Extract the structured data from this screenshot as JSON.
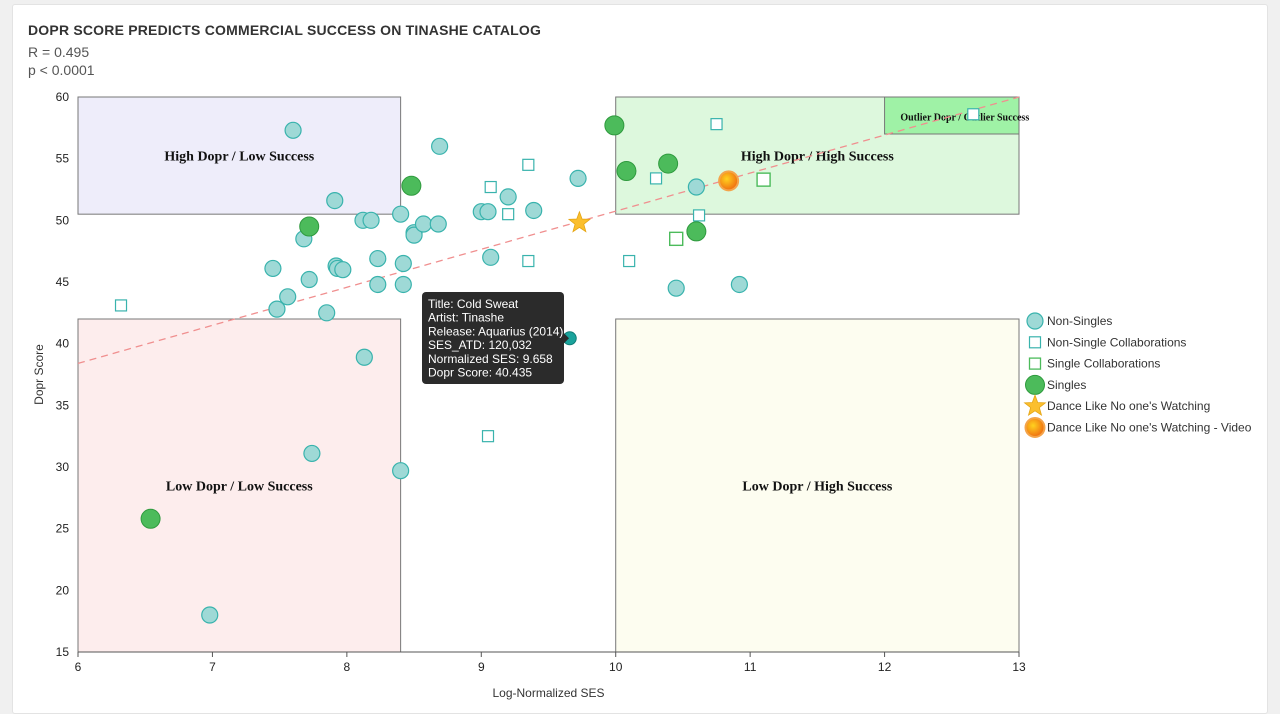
{
  "header": {
    "title": "DOPR SCORE PREDICTS COMMERCIAL SUCCESS ON TINASHE CATALOG",
    "r_value": "R = 0.495",
    "p_value": "p < 0.0001"
  },
  "colors": {
    "teal_fill": "#9ed9d6",
    "teal_stroke": "#39b3ad",
    "green_fill": "#4cbb5b",
    "green_stroke": "#2f9a3e",
    "star": "#fbbf2d",
    "video": "#f27c12",
    "trend": "#f08f8f",
    "region_high_low": "#eeedfa",
    "region_high_high": "#ddf8dd",
    "region_outlier": "#9ff2a6",
    "region_low_low": "#fdeded",
    "region_low_high": "#fdfdf0",
    "tooltip_bg": "#2b2b2b"
  },
  "chart_data": {
    "type": "scatter",
    "xlabel": "Log-Normalized SES",
    "ylabel": "Dopr Score",
    "xlim": [
      6,
      13
    ],
    "ylim": [
      15,
      60
    ],
    "x_ticks": [
      "6",
      "7",
      "8",
      "9",
      "10",
      "11",
      "12",
      "13"
    ],
    "y_ticks": [
      "15",
      "20",
      "25",
      "30",
      "35",
      "40",
      "45",
      "50",
      "55",
      "60"
    ],
    "grid": false,
    "legend_position": "right",
    "regions": [
      {
        "label": "High Dopr / Low Success",
        "x": [
          6,
          8.4
        ],
        "y": [
          50.5,
          60
        ],
        "color_key": "region_high_low"
      },
      {
        "label": "High Dopr / High Success",
        "x": [
          10,
          13
        ],
        "y": [
          50.5,
          60
        ],
        "color_key": "region_high_high"
      },
      {
        "label": "Outlier Dopr / Outlier Success",
        "x": [
          12,
          13
        ],
        "y": [
          57,
          60
        ],
        "color_key": "region_outlier"
      },
      {
        "label": "Low Dopr / Low Success",
        "x": [
          6,
          8.4
        ],
        "y": [
          15,
          42
        ],
        "color_key": "region_low_low"
      },
      {
        "label": "Low Dopr / High Success",
        "x": [
          10,
          13
        ],
        "y": [
          15,
          42
        ],
        "color_key": "region_low_high"
      }
    ],
    "trendline": {
      "x": [
        6,
        13
      ],
      "y": [
        38.4,
        60
      ]
    },
    "series": [
      {
        "name": "Non-Singles",
        "marker": "circle",
        "points": [
          [
            7.6,
            57.3
          ],
          [
            8.69,
            56.0
          ],
          [
            7.91,
            51.6
          ],
          [
            8.4,
            50.5
          ],
          [
            8.12,
            50.0
          ],
          [
            8.18,
            50.0
          ],
          [
            7.68,
            48.5
          ],
          [
            8.5,
            49.0
          ],
          [
            8.5,
            48.8
          ],
          [
            8.57,
            49.7
          ],
          [
            8.68,
            49.7
          ],
          [
            9.0,
            50.7
          ],
          [
            9.05,
            50.7
          ],
          [
            9.2,
            51.9
          ],
          [
            9.39,
            50.8
          ],
          [
            9.72,
            53.4
          ],
          [
            10.6,
            52.7
          ],
          [
            9.07,
            47.0
          ],
          [
            7.45,
            46.1
          ],
          [
            7.72,
            45.2
          ],
          [
            7.92,
            46.3
          ],
          [
            7.93,
            46.1
          ],
          [
            7.97,
            46.0
          ],
          [
            8.23,
            46.9
          ],
          [
            8.42,
            46.5
          ],
          [
            8.23,
            44.8
          ],
          [
            8.42,
            44.8
          ],
          [
            7.56,
            43.8
          ],
          [
            7.48,
            42.8
          ],
          [
            7.85,
            42.5
          ],
          [
            10.45,
            44.5
          ],
          [
            10.92,
            44.8
          ],
          [
            8.13,
            38.9
          ],
          [
            7.74,
            31.1
          ],
          [
            8.4,
            29.7
          ],
          [
            6.98,
            18.0
          ]
        ]
      },
      {
        "name": "Non-Single Collaborations",
        "marker": "square",
        "points": [
          [
            9.35,
            54.5
          ],
          [
            9.07,
            52.7
          ],
          [
            9.2,
            50.5
          ],
          [
            10.75,
            57.8
          ],
          [
            12.66,
            58.6
          ],
          [
            10.3,
            53.4
          ],
          [
            10.62,
            50.4
          ],
          [
            10.1,
            46.7
          ],
          [
            9.35,
            46.7
          ],
          [
            6.32,
            43.1
          ],
          [
            9.05,
            32.5
          ]
        ]
      },
      {
        "name": "Single Collaborations",
        "marker": "square-large",
        "points": [
          [
            11.1,
            53.3
          ],
          [
            10.45,
            48.5
          ]
        ]
      },
      {
        "name": "Singles",
        "marker": "circle-large",
        "points": [
          [
            9.99,
            57.7
          ],
          [
            8.48,
            52.8
          ],
          [
            10.08,
            54.0
          ],
          [
            10.39,
            54.6
          ],
          [
            7.72,
            49.5
          ],
          [
            10.6,
            49.1
          ],
          [
            6.54,
            25.8
          ]
        ]
      },
      {
        "name": "Dance Like No one's Watching",
        "marker": "star",
        "points": [
          [
            9.73,
            49.8
          ]
        ]
      },
      {
        "name": "Dance Like No one's Watching - Video",
        "marker": "circle-orange",
        "points": [
          [
            10.84,
            53.2
          ]
        ]
      }
    ],
    "highlight_point": [
      9.658,
      40.435
    ],
    "tooltip": {
      "lines": [
        "Title: Cold Sweat",
        "Artist: Tinashe",
        "Release: Aquarius (2014)",
        "SES_ATD: 120,032",
        "Normalized SES: 9.658",
        "Dopr Score: 40.435"
      ]
    }
  }
}
